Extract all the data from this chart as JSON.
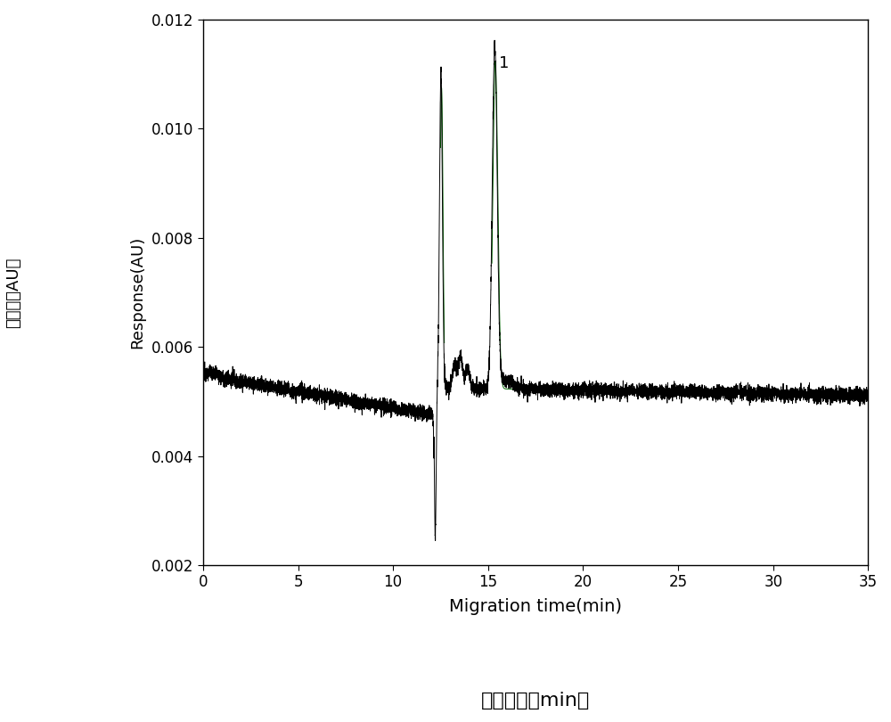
{
  "xlim": [
    0,
    35
  ],
  "ylim": [
    0.002,
    0.012
  ],
  "xlabel_en": "Migration time(min)",
  "xlabel_zh": "迁移时间（min）",
  "ylabel_en": "Response(AU)",
  "ylabel_zh": "响应値（AU）",
  "xticks": [
    0,
    5,
    10,
    15,
    20,
    25,
    30,
    35
  ],
  "yticks": [
    0.002,
    0.004,
    0.006,
    0.008,
    0.01,
    0.012
  ],
  "peak1_label": "1",
  "background_color": "#ffffff",
  "line_color": "#000000",
  "green_line_color": "#006600",
  "noise_amplitude": 6.5e-05,
  "baseline_start": 0.00548,
  "baseline_end": 0.005
}
